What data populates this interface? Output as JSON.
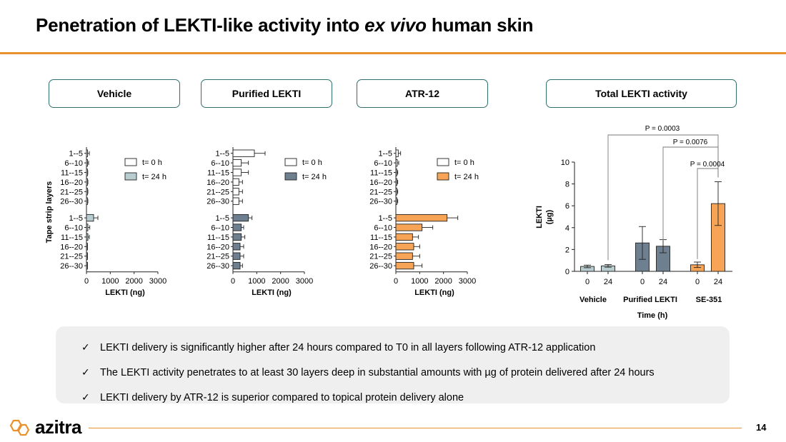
{
  "slide": {
    "title_prefix": "Penetration of LEKTI-like activity into ",
    "title_italic": "ex vivo",
    "title_suffix": " human skin",
    "page_number": "14",
    "logo_text": "azitra",
    "accent_color": "#e8922e",
    "border_color": "#2e6f6b"
  },
  "panels": {
    "vehicle": "Vehicle",
    "purified": "Purified LEKTI",
    "atr12": "ATR-12",
    "total": "Total LEKTI activity"
  },
  "bullets": [
    "LEKTI delivery is significantly higher after 24 hours compared to T0 in all layers following ATR-12 application",
    "The LEKTI activity penetrates to at least 30 layers deep in substantial amounts with µg of protein delivered after 24 hours",
    "LEKTI delivery by ATR-12 is superior compared to topical protein delivery alone"
  ],
  "chart_data": [
    {
      "type": "bar",
      "orientation": "horizontal",
      "name": "Vehicle",
      "ylabel": "Tape strip layers",
      "xlabel": "LEKTI (ng)",
      "xlim": [
        0,
        3000
      ],
      "xticks": [
        "0",
        "1000",
        "2000",
        "3000"
      ],
      "categories": [
        "1--5",
        "6--10",
        "11--15",
        "16--20",
        "21--25",
        "26--30"
      ],
      "legend": [
        "t= 0 h",
        "t= 24 h"
      ],
      "colors": [
        "#ffffff",
        "#b9cdd0"
      ],
      "series": [
        {
          "name": "t= 0 h",
          "values": [
            40,
            30,
            15,
            20,
            20,
            20
          ],
          "errors": [
            80,
            60,
            40,
            40,
            40,
            40
          ]
        },
        {
          "name": "t= 24 h",
          "values": [
            300,
            60,
            60,
            10,
            10,
            10
          ],
          "errors": [
            180,
            80,
            60,
            30,
            30,
            30
          ]
        }
      ]
    },
    {
      "type": "bar",
      "orientation": "horizontal",
      "name": "Purified LEKTI",
      "ylabel": "",
      "xlabel": "LEKTI (ng)",
      "xlim": [
        0,
        3000
      ],
      "xticks": [
        "0",
        "1000",
        "2000",
        "3000"
      ],
      "categories": [
        "1--5",
        "6--10",
        "11--15",
        "16--20",
        "21--25",
        "26--30"
      ],
      "legend": [
        "t= 0 h",
        "t= 24 h"
      ],
      "colors": [
        "#ffffff",
        "#6e7f8f"
      ],
      "series": [
        {
          "name": "t= 0 h",
          "values": [
            900,
            350,
            350,
            250,
            250,
            250
          ],
          "errors": [
            450,
            300,
            300,
            150,
            150,
            150
          ]
        },
        {
          "name": "t= 24 h",
          "values": [
            650,
            350,
            350,
            300,
            300,
            300
          ],
          "errors": [
            150,
            100,
            150,
            150,
            150,
            100
          ]
        }
      ]
    },
    {
      "type": "bar",
      "orientation": "horizontal",
      "name": "ATR-12",
      "ylabel": "",
      "xlabel": "LEKTI (ng)",
      "xlim": [
        0,
        3000
      ],
      "xticks": [
        "0",
        "1000",
        "2000",
        "3000"
      ],
      "categories": [
        "1--5",
        "6--10",
        "11--15",
        "16--20",
        "21--25",
        "26--30"
      ],
      "legend": [
        "t= 0 h",
        "t= 24 h"
      ],
      "colors": [
        "#ffffff",
        "#f7a456"
      ],
      "series": [
        {
          "name": "t= 0 h",
          "values": [
            100,
            60,
            40,
            40,
            40,
            40
          ],
          "errors": [
            100,
            60,
            40,
            40,
            40,
            40
          ]
        },
        {
          "name": "t= 24 h",
          "values": [
            2150,
            1100,
            700,
            750,
            700,
            750
          ],
          "errors": [
            450,
            450,
            250,
            250,
            300,
            350
          ]
        }
      ]
    },
    {
      "type": "bar",
      "name": "Total LEKTI activity",
      "ylabel": "LEKTI (µg)",
      "xlabel": "Time (h)",
      "ylim": [
        0,
        10
      ],
      "yticks": [
        "0",
        "2",
        "4",
        "6",
        "8",
        "10"
      ],
      "groups": [
        "Vehicle",
        "Purified LEKTI",
        "SE-351"
      ],
      "x": [
        "0",
        "24",
        "0",
        "24",
        "0",
        "24"
      ],
      "colors": [
        "#b9cdd0",
        "#b9cdd0",
        "#6e7f8f",
        "#6e7f8f",
        "#f7a456",
        "#f7a456"
      ],
      "values": [
        0.45,
        0.5,
        2.6,
        2.3,
        0.6,
        6.2
      ],
      "errors": [
        0.12,
        0.12,
        1.5,
        0.6,
        0.25,
        2.0
      ],
      "annotations": [
        "P = 0.0003",
        "P = 0.0076",
        "P = 0.0004"
      ]
    }
  ]
}
